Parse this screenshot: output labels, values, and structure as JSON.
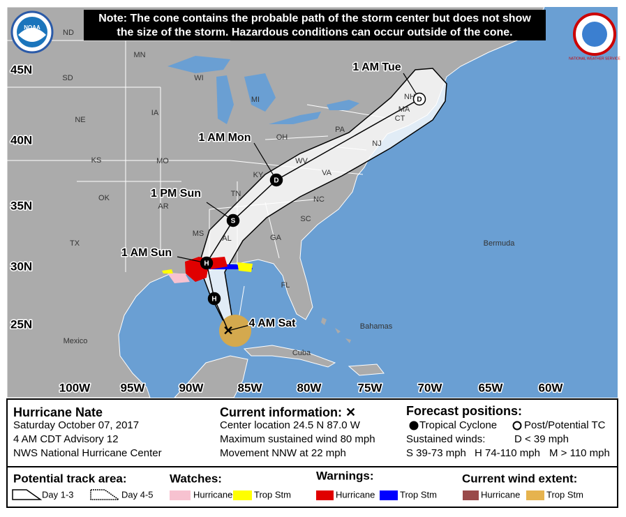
{
  "map": {
    "note": [
      "Note: The cone contains the probable path of the storm center but does not show",
      "the size of the storm. Hazardous conditions can occur outside of the cone."
    ],
    "logos": [
      "NOAA",
      "NATIONAL WEATHER SERVICE"
    ],
    "lat_labels": [
      "45N",
      "40N",
      "35N",
      "30N",
      "25N"
    ],
    "lon_labels": [
      "100W",
      "95W",
      "90W",
      "85W",
      "80W",
      "75W",
      "70W",
      "65W",
      "60W"
    ],
    "state_labels": [
      "ND",
      "SD",
      "MN",
      "WI",
      "MI",
      "IA",
      "NE",
      "KS",
      "MO",
      "OK",
      "AR",
      "TX",
      "MS",
      "AL",
      "GA",
      "SC",
      "NC",
      "TN",
      "KY",
      "VA",
      "WV",
      "OH",
      "PA",
      "NH",
      "MA",
      "CT",
      "NJ",
      "FL"
    ],
    "place_labels": [
      "Mexico",
      "Bahamas",
      "Cuba",
      "Bermuda"
    ],
    "forecast_labels": [
      "1 AM Tue",
      "1 AM Mon",
      "1 PM Sun",
      "1 AM Sun",
      "4 AM Sat"
    ],
    "markers": [
      "D",
      "D",
      "S",
      "H",
      "H"
    ],
    "current_symbol": "✕"
  },
  "info": {
    "storm": "Hurricane Nate",
    "details": [
      "Saturday October 07, 2017",
      "4 AM CDT Advisory 12",
      "NWS National Hurricane Center"
    ],
    "current_title": "Current information: ✕",
    "current_lines": [
      "Center location 24.5 N 87.0 W",
      "Maximum sustained wind 80 mph",
      "Movement NNW at 22 mph"
    ],
    "forecast_title": "Forecast positions:",
    "forecast_items": [
      "Tropical Cyclone",
      "Post/Potential TC"
    ],
    "sustained": "Sustained winds:",
    "wind_classes": [
      "D < 39 mph",
      "S 39-73 mph",
      "H 74-110 mph",
      "M > 110 mph"
    ]
  },
  "legend": {
    "track_title": "Potential track area:",
    "track_items": [
      "Day 1-3",
      "Day 4-5"
    ],
    "watches_title": "Watches:",
    "watch_items": [
      "Hurricane",
      "Trop Stm"
    ],
    "warnings_title": "Warnings:",
    "warning_items": [
      "Hurricane",
      "Trop Stm"
    ],
    "wind_title": "Current wind extent:",
    "wind_items": [
      "Hurricane",
      "Trop Stm"
    ]
  }
}
